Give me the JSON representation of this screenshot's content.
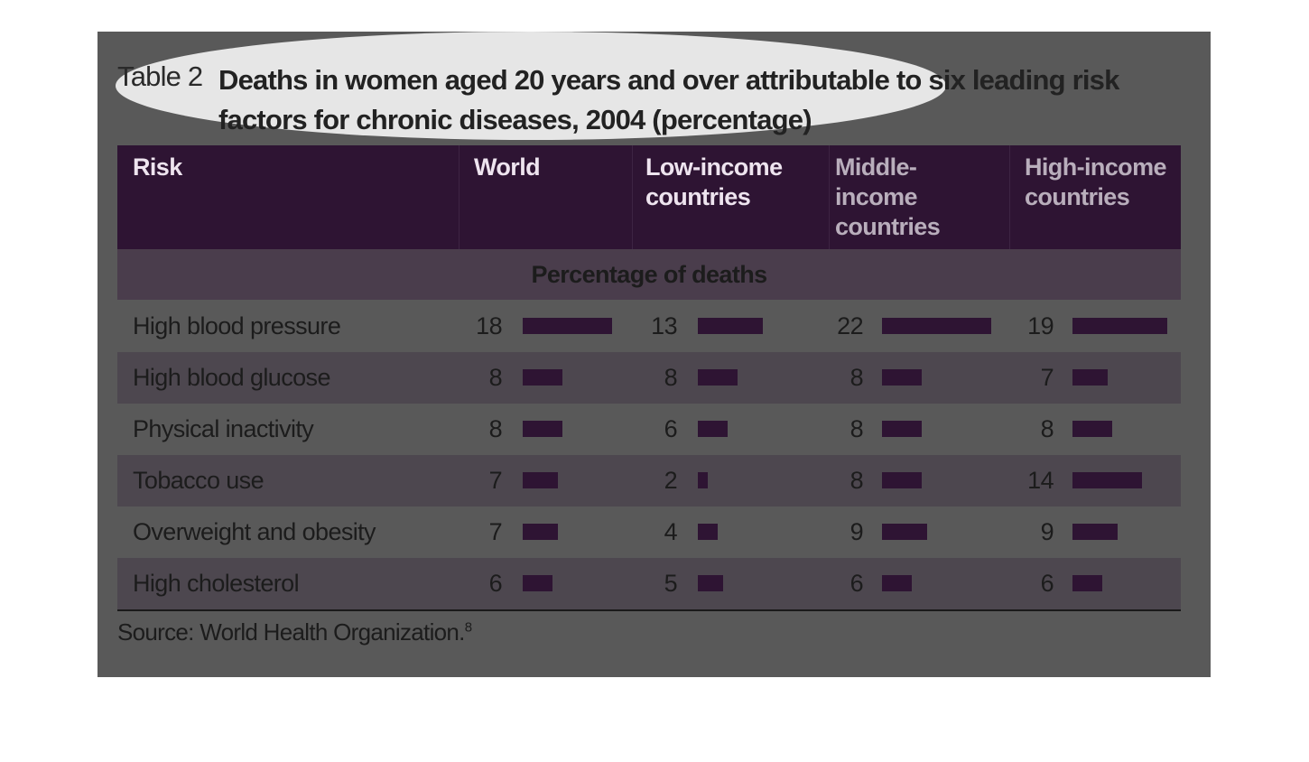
{
  "title_label": "Table 2",
  "title": "Deaths in women aged 20 years and over attributable to six leading risk factors for chronic diseases, 2004 (percentage)",
  "columns": [
    "Risk",
    "World",
    "Low-income countries",
    "Middle-income countries",
    "High-income countries"
  ],
  "subheader": "Percentage of deaths",
  "rows": [
    {
      "risk": "High blood pressure",
      "values": [
        18,
        13,
        22,
        19
      ]
    },
    {
      "risk": "High blood glucose",
      "values": [
        8,
        8,
        8,
        7
      ]
    },
    {
      "risk": "Physical inactivity",
      "values": [
        8,
        6,
        8,
        8
      ]
    },
    {
      "risk": "Tobacco use",
      "values": [
        7,
        2,
        8,
        14
      ]
    },
    {
      "risk": "Overweight and obesity",
      "values": [
        7,
        4,
        9,
        9
      ]
    },
    {
      "risk": "High cholesterol",
      "values": [
        6,
        5,
        6,
        6
      ]
    }
  ],
  "source": "Source: World Health Organization.",
  "source_note": "8"
}
